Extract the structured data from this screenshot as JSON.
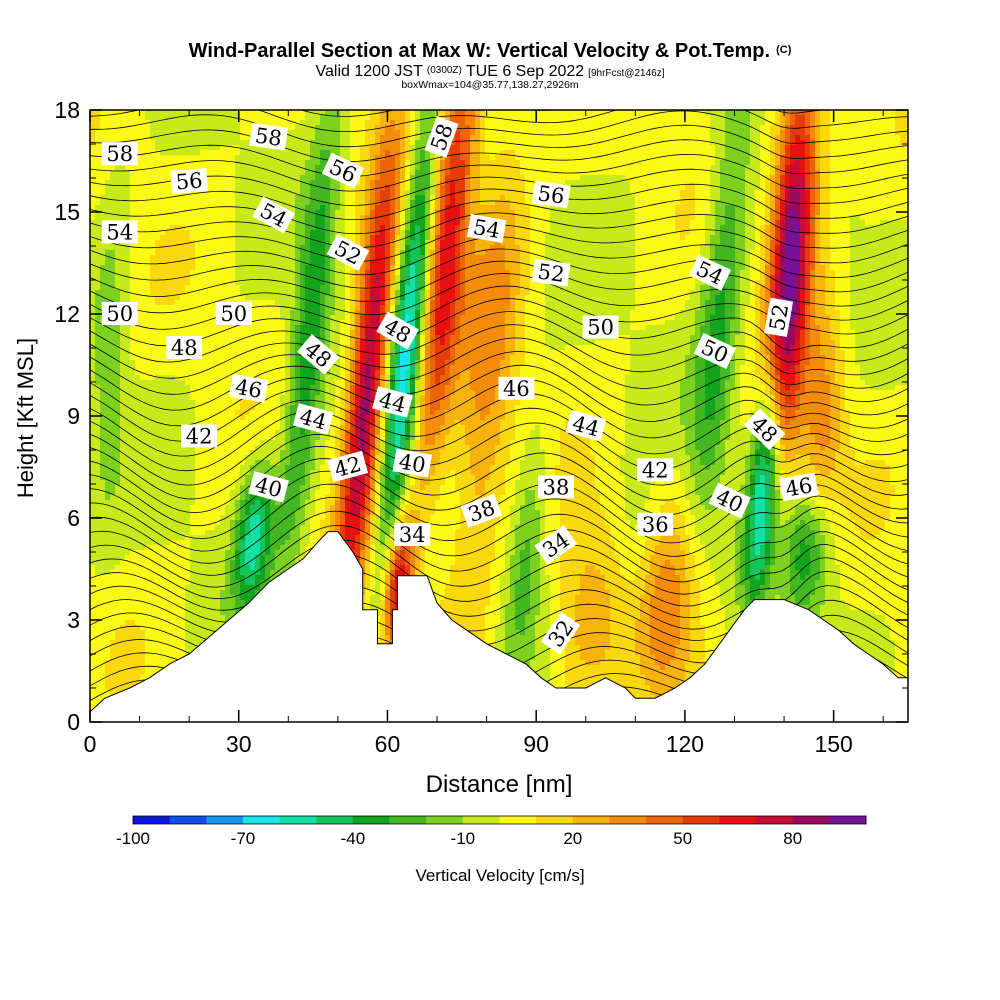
{
  "chart_data": {
    "type": "heatmap",
    "title_main": "Wind-Parallel Section at Max W: Vertical Velocity & Pot.Temp.",
    "title_tag": "(C)",
    "subtitle_valid": "Valid 1200 JST",
    "subtitle_utc": "(0300Z)",
    "subtitle_date": "TUE 6 Sep 2022",
    "subtitle_fcst": "[9hrFcst@2146z]",
    "subtitle_box": "boxWmax=104@35.77,138.27,2926m",
    "xlabel": "Distance [nm]",
    "ylabel": "Height [Kft MSL]",
    "xlim": [
      0,
      165
    ],
    "ylim": [
      0,
      18
    ],
    "xticks": [
      0,
      30,
      60,
      90,
      120,
      150
    ],
    "yticks": [
      0,
      3,
      6,
      9,
      12,
      15,
      18
    ],
    "colorbar": {
      "label": "Vertical Velocity [cm/s]",
      "tick_labels": [
        "-100",
        "-70",
        "-40",
        "-10",
        "20",
        "50",
        "80"
      ],
      "tick_values": [
        -100,
        -70,
        -40,
        -10,
        20,
        50,
        80
      ],
      "colors": [
        "#0a14e6",
        "#0f50ec",
        "#1696f0",
        "#19e6ea",
        "#13e0a6",
        "#14c45a",
        "#12a41c",
        "#44b622",
        "#7ed01e",
        "#c8ea1a",
        "#fafa14",
        "#fad80e",
        "#f8b20c",
        "#f48c0a",
        "#ee6408",
        "#e83c08",
        "#e81010",
        "#c80c38",
        "#9c0a60",
        "#78109a"
      ]
    },
    "terrain_kft": [
      [
        0,
        0.3
      ],
      [
        3,
        0.7
      ],
      [
        8,
        1.0
      ],
      [
        12,
        1.3
      ],
      [
        16,
        1.7
      ],
      [
        20,
        2.0
      ],
      [
        24,
        2.5
      ],
      [
        28,
        3.0
      ],
      [
        32,
        3.5
      ],
      [
        36,
        4.1
      ],
      [
        40,
        4.5
      ],
      [
        43,
        4.8
      ],
      [
        46,
        5.3
      ],
      [
        48,
        5.6
      ],
      [
        50,
        5.6
      ],
      [
        53,
        5.0
      ],
      [
        55,
        4.5
      ],
      [
        55,
        3.3
      ],
      [
        58,
        3.3
      ],
      [
        58,
        2.3
      ],
      [
        61,
        2.3
      ],
      [
        61,
        3.3
      ],
      [
        62,
        3.3
      ],
      [
        62,
        4.3
      ],
      [
        68,
        4.3
      ],
      [
        70,
        3.5
      ],
      [
        73,
        3.0
      ],
      [
        76,
        2.7
      ],
      [
        80,
        2.3
      ],
      [
        84,
        2.0
      ],
      [
        88,
        1.7
      ],
      [
        91,
        1.3
      ],
      [
        94,
        1.0
      ],
      [
        100,
        1.0
      ],
      [
        104,
        1.3
      ],
      [
        108,
        1.0
      ],
      [
        110,
        0.7
      ],
      [
        114,
        0.7
      ],
      [
        118,
        1.0
      ],
      [
        121,
        1.3
      ],
      [
        124,
        1.7
      ],
      [
        127,
        2.3
      ],
      [
        129,
        2.7
      ],
      [
        132,
        3.3
      ],
      [
        134,
        3.6
      ],
      [
        140,
        3.6
      ],
      [
        145,
        3.3
      ],
      [
        148,
        3.0
      ],
      [
        151,
        2.7
      ],
      [
        154,
        2.3
      ],
      [
        157,
        2.0
      ],
      [
        160,
        1.7
      ],
      [
        163,
        1.3
      ],
      [
        165,
        1.3
      ]
    ],
    "updrafts": [
      {
        "x": 56,
        "z": 10,
        "w": 90,
        "sx": 2.6,
        "sz": 4.5,
        "tilt": 0.55
      },
      {
        "x": 72,
        "z": 14,
        "w": 65,
        "sx": 3.0,
        "sz": 5.0,
        "tilt": 0.55
      },
      {
        "x": 62,
        "z": 4,
        "w": 75,
        "sx": 2.0,
        "sz": 1.5,
        "tilt": 0.4
      },
      {
        "x": 141,
        "z": 13,
        "w": 90,
        "sx": 2.8,
        "sz": 4.0,
        "tilt": 0.35
      },
      {
        "x": 148,
        "z": 9,
        "w": 40,
        "sx": 3.0,
        "sz": 3.0,
        "tilt": 0.3
      },
      {
        "x": 80,
        "z": 10,
        "w": 30,
        "sx": 4.0,
        "sz": 6.0,
        "tilt": 0.5
      },
      {
        "x": 100,
        "z": 3,
        "w": 25,
        "sx": 5.0,
        "sz": 2.0,
        "tilt": 0.3
      },
      {
        "x": 117,
        "z": 3,
        "w": 30,
        "sx": 5.0,
        "sz": 2.5,
        "tilt": 0.3
      },
      {
        "x": 145,
        "z": 16,
        "w": 20,
        "sx": 5.0,
        "sz": 2.5,
        "tilt": 0.3
      }
    ],
    "downdrafts": [
      {
        "x": 64,
        "z": 11,
        "w": -70,
        "sx": 2.4,
        "sz": 5.0,
        "tilt": 0.55
      },
      {
        "x": 136,
        "z": 7,
        "w": -70,
        "sx": 2.2,
        "sz": 2.5,
        "tilt": 0.45
      },
      {
        "x": 33,
        "z": 5.5,
        "w": -55,
        "sx": 2.5,
        "sz": 1.5,
        "tilt": 0.5
      },
      {
        "x": 44,
        "z": 11,
        "w": -40,
        "sx": 2.5,
        "sz": 5.0,
        "tilt": 0.55
      },
      {
        "x": 127,
        "z": 12,
        "w": -35,
        "sx": 3.0,
        "sz": 5.0,
        "tilt": 0.5
      },
      {
        "x": 88,
        "z": 5,
        "w": -25,
        "sx": 2.5,
        "sz": 2.5,
        "tilt": 0.5
      },
      {
        "x": 145,
        "z": 5,
        "w": -45,
        "sx": 3.5,
        "sz": 1.5,
        "tilt": 0.3
      },
      {
        "x": 4,
        "z": 11,
        "w": -15,
        "sx": 2.5,
        "sz": 4.0,
        "tilt": 0.2
      },
      {
        "x": 150,
        "z": 12,
        "w": -15,
        "sx": 3.0,
        "sz": 3.0,
        "tilt": 0.3
      },
      {
        "x": 110,
        "z": 5,
        "w": -12,
        "sx": 3.0,
        "sz": 2.0,
        "tilt": 0.3
      }
    ],
    "contour_labels": [
      {
        "text": "58",
        "x": 6,
        "z": 16.7,
        "rot": 0
      },
      {
        "text": "58",
        "x": 36,
        "z": 17.2,
        "rot": 8
      },
      {
        "text": "58",
        "x": 71,
        "z": 17.2,
        "rot": -70
      },
      {
        "text": "56",
        "x": 20,
        "z": 15.9,
        "rot": -5
      },
      {
        "text": "56",
        "x": 51,
        "z": 16.2,
        "rot": 25
      },
      {
        "text": "56",
        "x": 93,
        "z": 15.5,
        "rot": 8
      },
      {
        "text": "54",
        "x": 6,
        "z": 14.4,
        "rot": 0
      },
      {
        "text": "54",
        "x": 37,
        "z": 14.9,
        "rot": 28
      },
      {
        "text": "54",
        "x": 80,
        "z": 14.5,
        "rot": 10
      },
      {
        "text": "54",
        "x": 125,
        "z": 13.2,
        "rot": 25
      },
      {
        "text": "52",
        "x": 52,
        "z": 13.8,
        "rot": 28
      },
      {
        "text": "52",
        "x": 93,
        "z": 13.2,
        "rot": 8
      },
      {
        "text": "52",
        "x": 139,
        "z": 11.9,
        "rot": -80
      },
      {
        "text": "50",
        "x": 6,
        "z": 12.0,
        "rot": 0
      },
      {
        "text": "50",
        "x": 29,
        "z": 12.0,
        "rot": 0
      },
      {
        "text": "50",
        "x": 103,
        "z": 11.6,
        "rot": 0
      },
      {
        "text": "50",
        "x": 126,
        "z": 10.9,
        "rot": 25
      },
      {
        "text": "48",
        "x": 19,
        "z": 11.0,
        "rot": 0
      },
      {
        "text": "48",
        "x": 46,
        "z": 10.8,
        "rot": 40
      },
      {
        "text": "48",
        "x": 62,
        "z": 11.5,
        "rot": 30
      },
      {
        "text": "48",
        "x": 136,
        "z": 8.6,
        "rot": 45
      },
      {
        "text": "46",
        "x": 32,
        "z": 9.8,
        "rot": 10
      },
      {
        "text": "46",
        "x": 86,
        "z": 9.8,
        "rot": 0
      },
      {
        "text": "46",
        "x": 143,
        "z": 6.9,
        "rot": -10
      },
      {
        "text": "44",
        "x": 45,
        "z": 8.9,
        "rot": 15
      },
      {
        "text": "44",
        "x": 61,
        "z": 9.4,
        "rot": 15
      },
      {
        "text": "44",
        "x": 100,
        "z": 8.7,
        "rot": 15
      },
      {
        "text": "42",
        "x": 22,
        "z": 8.4,
        "rot": 0
      },
      {
        "text": "42",
        "x": 52,
        "z": 7.5,
        "rot": -15
      },
      {
        "text": "42",
        "x": 114,
        "z": 7.4,
        "rot": 0
      },
      {
        "text": "40",
        "x": 36,
        "z": 6.9,
        "rot": 15
      },
      {
        "text": "40",
        "x": 65,
        "z": 7.6,
        "rot": 10
      },
      {
        "text": "40",
        "x": 129,
        "z": 6.5,
        "rot": 25
      },
      {
        "text": "38",
        "x": 79,
        "z": 6.2,
        "rot": -20
      },
      {
        "text": "38",
        "x": 94,
        "z": 6.9,
        "rot": 0
      },
      {
        "text": "36",
        "x": 114,
        "z": 5.8,
        "rot": 0
      },
      {
        "text": "34",
        "x": 65,
        "z": 5.5,
        "rot": 0
      },
      {
        "text": "34",
        "x": 94,
        "z": 5.2,
        "rot": -35
      },
      {
        "text": "32",
        "x": 95,
        "z": 2.6,
        "rot": -55
      }
    ]
  }
}
